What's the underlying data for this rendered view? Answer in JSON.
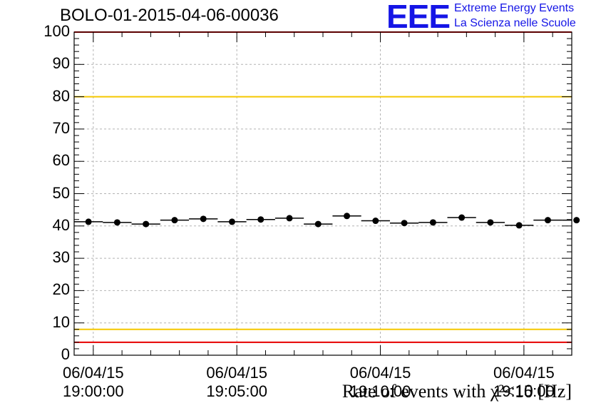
{
  "header": {
    "title": "BOLO-01-2015-04-06-00036",
    "logo_mark": "EEE",
    "logo_line1": "Extreme Energy Events",
    "logo_line2": "La Scienza nelle Scuole"
  },
  "colors": {
    "logo": "#1515e6",
    "limit_red": "#e60000",
    "limit_yellow": "#f5c800",
    "grid": "#b4b4b4",
    "marker": "#000000"
  },
  "chart_data": {
    "type": "scatter",
    "title": "BOLO-01-2015-04-06-00036",
    "xlabel": "Rate of events with χ²<10 [Hz]",
    "ylabel": "",
    "ylim": [
      0,
      100
    ],
    "xlim": [
      "2015-04-06 18:59:20",
      "2015-04-06 19:16:40"
    ],
    "yticks": [
      "0",
      "10",
      "20",
      "30",
      "40",
      "50",
      "60",
      "70",
      "80",
      "90",
      "100"
    ],
    "xticks": [
      {
        "date": "06/04/15",
        "time": "19:00:00"
      },
      {
        "date": "06/04/15",
        "time": "19:05:00"
      },
      {
        "date": "06/04/15",
        "time": "19:10:00"
      },
      {
        "date": "06/04/15",
        "time": "19:15:00"
      }
    ],
    "grid": true,
    "bin_width_seconds": 60,
    "x": [
      "18:59:50",
      "19:00:50",
      "19:01:50",
      "19:02:50",
      "19:03:50",
      "19:04:50",
      "19:05:50",
      "19:06:50",
      "19:07:50",
      "19:08:50",
      "19:09:50",
      "19:10:50",
      "19:11:50",
      "19:12:50",
      "19:13:50",
      "19:14:50",
      "19:15:50",
      "19:16:50"
    ],
    "values": [
      41.3,
      41.1,
      40.6,
      41.8,
      42.2,
      41.3,
      42.0,
      42.4,
      40.6,
      43.1,
      41.6,
      40.9,
      41.1,
      42.6,
      41.1,
      40.2,
      41.8,
      41.8
    ],
    "reference_lines": [
      {
        "y": 100,
        "color": "red"
      },
      {
        "y": 80,
        "color": "yellow"
      },
      {
        "y": 8,
        "color": "yellow"
      },
      {
        "y": 4,
        "color": "red"
      }
    ]
  }
}
